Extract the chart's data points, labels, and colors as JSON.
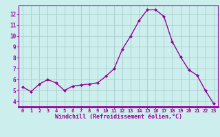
{
  "x": [
    0,
    1,
    2,
    3,
    4,
    5,
    6,
    7,
    8,
    9,
    10,
    11,
    12,
    13,
    14,
    15,
    16,
    17,
    18,
    19,
    20,
    21,
    22,
    23
  ],
  "y": [
    5.3,
    4.9,
    5.6,
    6.0,
    5.7,
    5.0,
    5.4,
    5.5,
    5.6,
    5.7,
    6.3,
    7.0,
    8.8,
    10.0,
    11.4,
    12.4,
    12.4,
    11.8,
    9.5,
    8.1,
    6.9,
    6.4,
    5.0,
    3.8
  ],
  "line_color": "#990099",
  "marker": "D",
  "marker_size": 2.0,
  "linewidth": 1.0,
  "xlabel": "Windchill (Refroidissement éolien,°C)",
  "xlabel_fontsize": 6.0,
  "xtick_labels": [
    "0",
    "1",
    "2",
    "3",
    "4",
    "5",
    "6",
    "7",
    "8",
    "9",
    "10",
    "11",
    "12",
    "13",
    "14",
    "15",
    "16",
    "17",
    "18",
    "19",
    "20",
    "21",
    "22",
    "23"
  ],
  "ytick_labels": [
    "4",
    "5",
    "6",
    "7",
    "8",
    "9",
    "10",
    "11",
    "12"
  ],
  "ytick_vals": [
    4,
    5,
    6,
    7,
    8,
    9,
    10,
    11,
    12
  ],
  "ylim": [
    3.5,
    12.8
  ],
  "xlim": [
    -0.5,
    23.5
  ],
  "bg_color": "#cceeed",
  "grid_color": "#aacccc",
  "tick_color": "#990099",
  "label_color": "#990099",
  "spine_color": "#990099",
  "bottom_bar_color": "#990099",
  "bottom_bar_text_color": "#ffffff"
}
